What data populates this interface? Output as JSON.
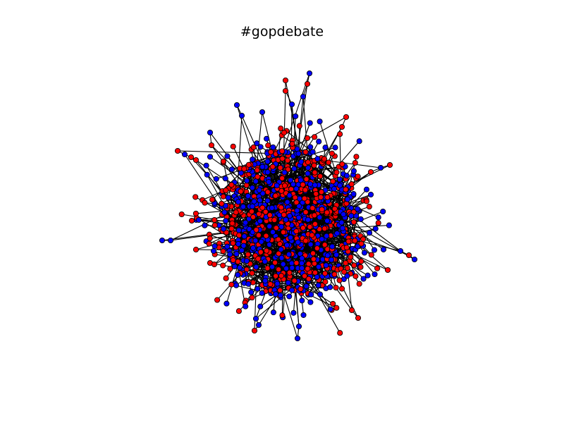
{
  "title": "#gopdebate",
  "graph": {
    "type": "network",
    "node_classes": [
      {
        "color": "#ff0000"
      },
      {
        "color": "#0000ff"
      }
    ],
    "node_outline_color": "#000000",
    "edge_color": "#000000"
  }
}
